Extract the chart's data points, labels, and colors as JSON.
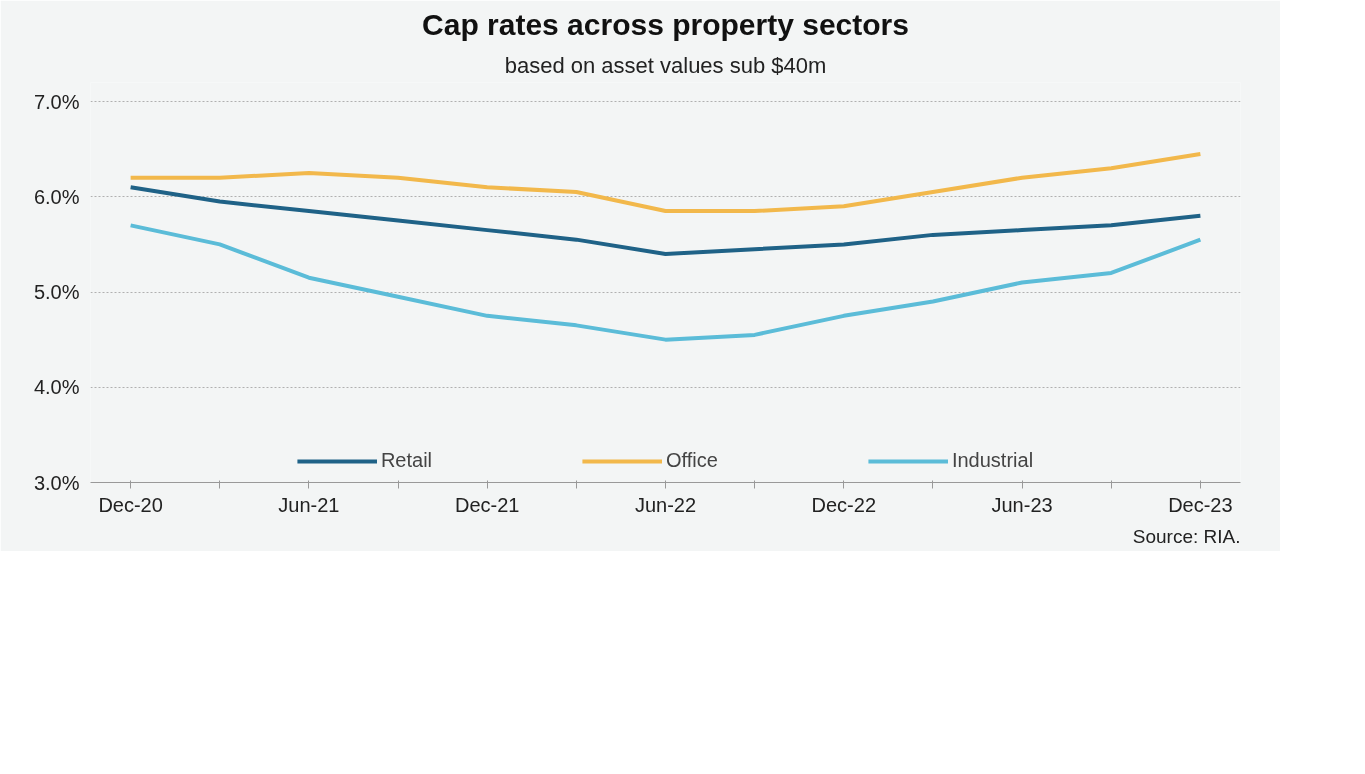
{
  "chart_data": {
    "type": "line",
    "title": "Cap rates across property sectors",
    "subtitle": "based on asset values sub $40m",
    "categories": [
      "Dec-20",
      null,
      "Jun-21",
      null,
      "Dec-21",
      null,
      "Jun-22",
      null,
      "Dec-22",
      null,
      "Jun-23",
      null,
      "Dec-23"
    ],
    "series": [
      {
        "name": "Retail",
        "color": "#1f6287",
        "values": [
          6.1,
          5.95,
          5.85,
          5.75,
          5.65,
          5.55,
          5.4,
          5.45,
          5.5,
          5.6,
          5.65,
          5.7,
          5.8
        ]
      },
      {
        "name": "Office",
        "color": "#f2b84b",
        "values": [
          6.2,
          6.2,
          6.25,
          6.2,
          6.1,
          6.05,
          5.85,
          5.85,
          5.9,
          6.05,
          6.2,
          6.3,
          6.45
        ]
      },
      {
        "name": "Industrial",
        "color": "#5bbcd8",
        "values": [
          5.7,
          5.5,
          5.15,
          4.95,
          4.75,
          4.65,
          4.5,
          4.55,
          4.75,
          4.9,
          5.1,
          5.2,
          5.55
        ]
      }
    ],
    "ylim": [
      3,
      7.2
    ],
    "yticks": [
      {
        "value": 3,
        "label": "3.0%"
      },
      {
        "value": 4,
        "label": "4.0%"
      },
      {
        "value": 5,
        "label": "5.0%"
      },
      {
        "value": 6,
        "label": "6.0%"
      },
      {
        "value": 7,
        "label": "7.0%"
      }
    ],
    "grid": "y",
    "legend": "bottom",
    "marker": "none",
    "line_style": "solid",
    "annotations": [
      "Source: RIA."
    ]
  }
}
